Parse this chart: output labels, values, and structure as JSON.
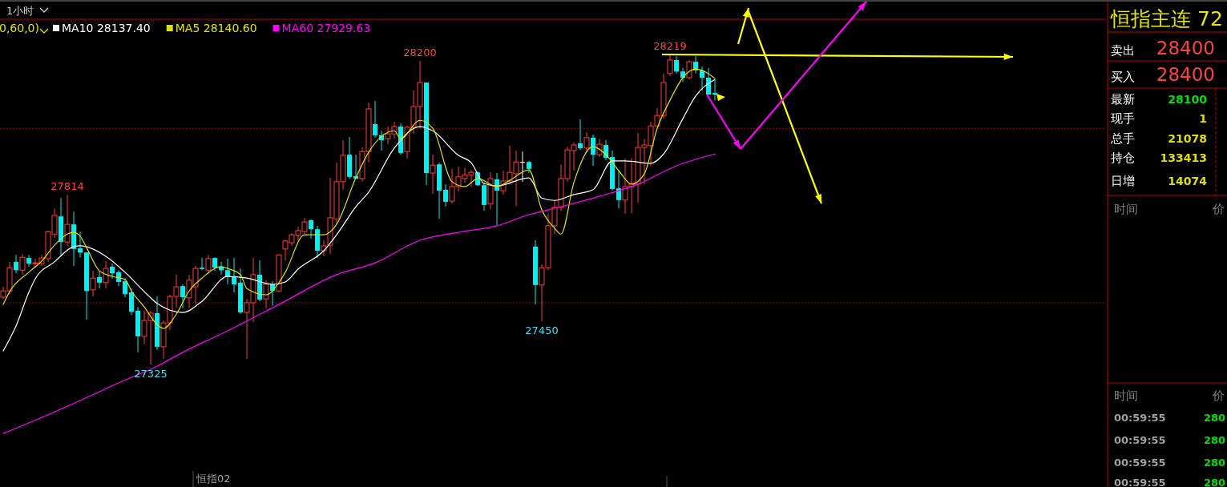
{
  "chart_data": {
    "type": "candlestick",
    "legend": "top left",
    "categories": [
      null,
      null,
      null,
      null,
      null,
      null,
      null,
      null,
      null,
      null,
      null,
      null,
      null,
      null,
      null,
      null,
      null,
      null,
      null,
      null,
      null,
      null,
      null,
      null,
      null,
      null,
      null,
      null,
      null,
      null,
      null,
      null,
      null,
      null,
      null,
      null,
      null,
      null,
      null,
      null,
      null,
      null,
      null,
      null,
      null,
      null,
      null,
      null,
      null,
      null,
      null,
      null,
      null,
      null,
      null,
      null,
      null,
      null,
      null,
      null,
      null,
      null,
      null,
      null,
      null,
      null,
      null,
      null,
      null,
      null,
      null,
      null,
      null,
      null,
      null,
      null,
      null,
      null,
      null,
      null,
      null,
      null,
      null,
      null,
      null,
      null,
      null,
      null,
      null,
      null,
      null,
      null,
      null,
      null,
      null,
      null,
      null,
      null,
      null,
      null,
      null,
      null,
      null,
      null,
      null,
      null,
      null,
      null,
      null,
      null,
      null,
      null
    ],
    "ohlc": [
      [
        27519,
        27549,
        27514,
        27537
      ],
      [
        27537,
        27621,
        27528,
        27604
      ],
      [
        27621,
        27641,
        27588,
        27597
      ],
      [
        27597,
        27644,
        27584,
        27634
      ],
      [
        27632,
        27641,
        27607,
        27616
      ],
      [
        27616,
        27630,
        27604,
        27618
      ],
      [
        27616,
        27641,
        27609,
        27632
      ],
      [
        27630,
        27711,
        27621,
        27708
      ],
      [
        27701,
        27775,
        27690,
        27755
      ],
      [
        27752,
        27805,
        27637,
        27678
      ],
      [
        27678,
        27814,
        27667,
        27729
      ],
      [
        27729,
        27766,
        27609,
        27658
      ],
      [
        27660,
        27708,
        27634,
        27648
      ],
      [
        27648,
        27648,
        27454,
        27537
      ],
      [
        27540,
        27595,
        27521,
        27574
      ],
      [
        27577,
        27593,
        27544,
        27561
      ],
      [
        27561,
        27623,
        27544,
        27602
      ],
      [
        27607,
        27616,
        27572,
        27588
      ],
      [
        27591,
        27597,
        27551,
        27563
      ],
      [
        27565,
        27574,
        27519,
        27528
      ],
      [
        27533,
        27544,
        27468,
        27477
      ],
      [
        27480,
        27491,
        27360,
        27406
      ],
      [
        27406,
        27480,
        27383,
        27452
      ],
      [
        27452,
        27480,
        27325,
        27473
      ],
      [
        27473,
        27521,
        27367,
        27376
      ],
      [
        27376,
        27452,
        27341,
        27445
      ],
      [
        27445,
        27526,
        27424,
        27521
      ],
      [
        27521,
        27584,
        27489,
        27549
      ],
      [
        27551,
        27556,
        27487,
        27519
      ],
      [
        27517,
        27584,
        27487,
        27568
      ],
      [
        27549,
        27609,
        27498,
        27602
      ],
      [
        27604,
        27632,
        27597,
        27600
      ],
      [
        27597,
        27641,
        27586,
        27630
      ],
      [
        27632,
        27634,
        27595,
        27604
      ],
      [
        27607,
        27621,
        27584,
        27597
      ],
      [
        27597,
        27630,
        27556,
        27579
      ],
      [
        27579,
        27632,
        27533,
        27556
      ],
      [
        27561,
        27602,
        27471,
        27475
      ],
      [
        27475,
        27514,
        27341,
        27503
      ],
      [
        27503,
        27632,
        27447,
        27584
      ],
      [
        27584,
        27625,
        27507,
        27512
      ],
      [
        27514,
        27568,
        27487,
        27556
      ],
      [
        27556,
        27565,
        27494,
        27537
      ],
      [
        27537,
        27641,
        27533,
        27641
      ],
      [
        27658,
        27685,
        27625,
        27681
      ],
      [
        27676,
        27704,
        27667,
        27699
      ],
      [
        27697,
        27722,
        27681,
        27711
      ],
      [
        27708,
        27748,
        27701,
        27736
      ],
      [
        27741,
        27743,
        27688,
        27715
      ],
      [
        27715,
        27725,
        27632,
        27653
      ],
      [
        27653,
        27683,
        27637,
        27667
      ],
      [
        27669,
        27863,
        27644,
        27748
      ],
      [
        27745,
        27907,
        27729,
        27852
      ],
      [
        27852,
        27972,
        27829,
        27928
      ],
      [
        27930,
        27981,
        27861,
        27866
      ],
      [
        27868,
        27930,
        27861,
        27861
      ],
      [
        27861,
        27951,
        27852,
        27939
      ],
      [
        27939,
        28080,
        27907,
        28062
      ],
      [
        28018,
        28085,
        27979,
        27986
      ],
      [
        27986,
        27999,
        27942,
        27972
      ],
      [
        27976,
        28011,
        27960,
        27990
      ],
      [
        27990,
        28025,
        27976,
        28011
      ],
      [
        28011,
        28020,
        27930,
        27935
      ],
      [
        27939,
        28013,
        27919,
        28009
      ],
      [
        28009,
        28115,
        27990,
        28069
      ],
      [
        28069,
        28200,
        28006,
        28138
      ],
      [
        28138,
        28138,
        27842,
        27877
      ],
      [
        27877,
        27930,
        27817,
        27900
      ],
      [
        27902,
        27907,
        27745,
        27826
      ],
      [
        27829,
        27845,
        27780,
        27794
      ],
      [
        27796,
        27889,
        27789,
        27838
      ],
      [
        27838,
        27896,
        27824,
        27866
      ],
      [
        27861,
        27891,
        27849,
        27872
      ],
      [
        27872,
        27886,
        27838,
        27879
      ],
      [
        27879,
        27882,
        27840,
        27842
      ],
      [
        27842,
        27849,
        27768,
        27785
      ],
      [
        27789,
        27879,
        27773,
        27861
      ],
      [
        27859,
        27877,
        27727,
        27826
      ],
      [
        27826,
        27884,
        27815,
        27854
      ],
      [
        27854,
        27956,
        27845,
        27879
      ],
      [
        27875,
        27942,
        27782,
        27909
      ],
      [
        27909,
        27939,
        27852,
        27909
      ],
      [
        27909,
        27912,
        27877,
        27889
      ],
      [
        27665,
        27683,
        27498,
        27554
      ],
      [
        27554,
        27614,
        27450,
        27604
      ],
      [
        27604,
        27759,
        27597,
        27725
      ],
      [
        27725,
        27799,
        27701,
        27778
      ],
      [
        27778,
        27902,
        27768,
        27861
      ],
      [
        27861,
        27953,
        27852,
        27944
      ],
      [
        27942,
        27965,
        27884,
        27958
      ],
      [
        27963,
        28032,
        27944,
        27949
      ],
      [
        27949,
        27995,
        27937,
        27979
      ],
      [
        27979,
        27988,
        27898,
        27930
      ],
      [
        27930,
        27976,
        27923,
        27960
      ],
      [
        27958,
        27972,
        27914,
        27921
      ],
      [
        27923,
        27942,
        27826,
        27831
      ],
      [
        27833,
        27884,
        27775,
        27799
      ],
      [
        27799,
        27919,
        27759,
        27838
      ],
      [
        27838,
        27921,
        27761,
        27845
      ],
      [
        27845,
        27993,
        27792,
        27951
      ],
      [
        27951,
        27976,
        27845,
        27958
      ],
      [
        27956,
        28025,
        27898,
        28013
      ],
      [
        28013,
        28064,
        28009,
        28043
      ],
      [
        28043,
        28164,
        28034,
        28138
      ],
      [
        28164,
        28219,
        28157,
        28203
      ],
      [
        28203,
        28214,
        28164,
        28170
      ],
      [
        28170,
        28180,
        28140,
        28152
      ],
      [
        28152,
        28203,
        28147,
        28198
      ],
      [
        28198,
        28214,
        28164,
        28173
      ],
      [
        28173,
        28184,
        28115,
        28152
      ],
      [
        28152,
        28180,
        28103,
        28103
      ],
      [
        28108,
        28145,
        28087,
        28103
      ]
    ],
    "series": [
      {
        "type": "line",
        "name": "MA10 28137.40",
        "color": "#ffffff",
        "values": [
          27364,
          null,
          27436,
          null,
          27533,
          27572,
          null,
          null,
          27621,
          null,
          null,
          27665,
          27667,
          null,
          null,
          null,
          27637,
          null,
          null,
          27591,
          null,
          null,
          27535,
          null,
          27501,
          null,
          null,
          null,
          27475,
          null,
          null,
          27507,
          null,
          null,
          null,
          27579,
          null,
          null,
          27574,
          null,
          null,
          null,
          27556,
          null,
          27563,
          null,
          27600,
          null,
          null,
          null,
          27653,
          null,
          27699,
          null,
          null,
          27780,
          null,
          27822,
          null,
          null,
          null,
          27949,
          null,
          null,
          null,
          28011,
          null,
          27999,
          null,
          null,
          null,
          27928,
          null,
          27907,
          null,
          27847,
          null,
          27840,
          null,
          null,
          null,
          null,
          27863,
          null,
          27805,
          null,
          27798,
          null,
          null,
          27815,
          null,
          null,
          27829,
          null,
          null,
          27912,
          null,
          27912,
          null,
          null,
          null,
          27905,
          null,
          27932,
          null,
          null,
          28034,
          null,
          28099,
          null,
          null,
          28147
        ]
      },
      {
        "type": "line",
        "name": "MA5 28140.60",
        "color": "#e0e000",
        "values": [
          27498,
          27535,
          null,
          null,
          27591,
          null,
          27623,
          null,
          27669,
          null,
          27701,
          27706,
          27695,
          27662,
          null,
          27595,
          null,
          27579,
          null,
          27570,
          27537,
          null,
          27491,
          null,
          27440,
          27429,
          null,
          27470,
          null,
          27537,
          null,
          27574,
          null,
          null,
          27607,
          27602,
          null,
          27584,
          27544,
          null,
          null,
          27526,
          null,
          27561,
          27591,
          null,
          null,
          27699,
          null,
          null,
          27699,
          null,
          27729,
          null,
          null,
          27863,
          null,
          27937,
          null,
          null,
          null,
          27999,
          27976,
          null,
          null,
          28029,
          null,
          28006,
          null,
          null,
          27852,
          null,
          27838,
          null,
          27861,
          null,
          null,
          27838,
          null,
          27856,
          null,
          null,
          27886,
          null,
          27771,
          null,
          27718,
          27701,
          null,
          27849,
          null,
          null,
          27953,
          null,
          27930,
          null,
          27884,
          null,
          27845,
          null,
          27875,
          null,
          28006,
          null,
          28087,
          null,
          28152,
          null,
          28177,
          null,
          null,
          28150
        ]
      },
      {
        "type": "line",
        "name": "MA60 27929.63",
        "color": "#ff00ff",
        "values": [
          27126,
          null,
          null,
          null,
          null,
          null,
          27172,
          null,
          null,
          null,
          null,
          null,
          27221,
          null,
          null,
          null,
          null,
          null,
          27272,
          null,
          null,
          null,
          null,
          null,
          27320,
          null,
          null,
          null,
          27360,
          null,
          null,
          null,
          null,
          null,
          null,
          27422,
          null,
          null,
          null,
          null,
          null,
          null,
          null,
          27498,
          null,
          null,
          null,
          null,
          null,
          null,
          null,
          null,
          27584,
          null,
          null,
          null,
          null,
          null,
          27618,
          null,
          null,
          null,
          null,
          null,
          null,
          27683,
          null,
          null,
          null,
          null,
          null,
          27706,
          null,
          null,
          null,
          null,
          null,
          27725,
          null,
          null,
          null,
          null,
          27757,
          null,
          null,
          null,
          null,
          27780,
          null,
          null,
          null,
          null,
          null,
          27810,
          null,
          null,
          null,
          null,
          null,
          27845,
          null,
          null,
          null,
          null,
          null,
          27898,
          null,
          null,
          null,
          null,
          null,
          27932
        ]
      }
    ],
    "ref_lines": [
      {
        "axis": "y",
        "value": 28006,
        "color": "#a00000",
        "line_style": "dotted"
      },
      {
        "axis": "y",
        "value": 27503,
        "color": "#a00000",
        "line_style": "dotted"
      }
    ],
    "annotations": [
      "1小时",
      "0,60,0)",
      "恒指主连",
      "72",
      "卖出",
      "28400",
      "买入",
      "28400",
      "最新",
      "28100",
      "现手",
      "1",
      "总手",
      "21078",
      "持仓",
      "133413",
      "日增",
      "14074",
      "时间",
      "价",
      "时间",
      "价",
      "00:59:55",
      "280",
      "00:59:55",
      "280",
      "00:59:55",
      "280",
      "00:59:55",
      "280",
      "恒指02",
      {
        "text": "27814",
        "y": 27814
      },
      {
        "text": "28200",
        "y": 28200
      },
      {
        "text": "28219",
        "y": 28219
      },
      {
        "text": "27325",
        "y": 27325
      },
      {
        "text": "27450",
        "y": 27450
      }
    ]
  }
}
